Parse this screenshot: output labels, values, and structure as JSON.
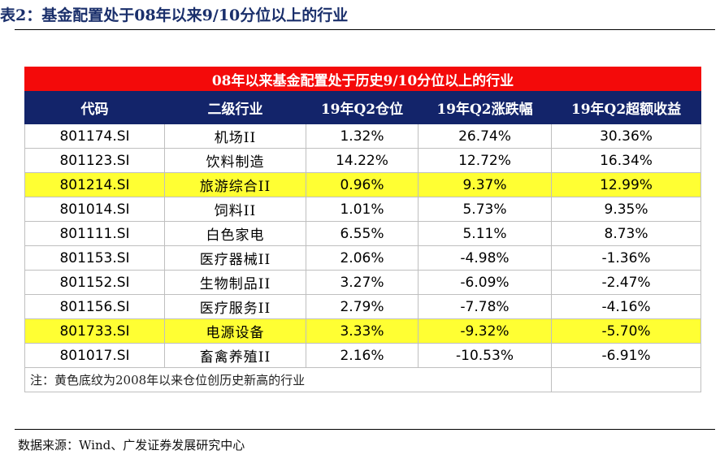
{
  "figure_title": "表2：基金配置处于08年以来9/10分位以上的行业",
  "table": {
    "banner": "08年以来基金配置处于历史9/10分位以上的行业",
    "columns": [
      "代码",
      "二级行业",
      "19年Q2仓位",
      "19年Q2涨跌幅",
      "19年Q2超额收益"
    ],
    "rows": [
      {
        "code": "801174.SI",
        "industry": "机场II",
        "position": "1.32%",
        "change": "26.74%",
        "excess": "30.36%",
        "highlight": false
      },
      {
        "code": "801123.SI",
        "industry": "饮料制造",
        "position": "14.22%",
        "change": "12.72%",
        "excess": "16.34%",
        "highlight": false
      },
      {
        "code": "801214.SI",
        "industry": "旅游综合II",
        "position": "0.96%",
        "change": "9.37%",
        "excess": "12.99%",
        "highlight": true
      },
      {
        "code": "801014.SI",
        "industry": "饲料II",
        "position": "1.01%",
        "change": "5.73%",
        "excess": "9.35%",
        "highlight": false
      },
      {
        "code": "801111.SI",
        "industry": "白色家电",
        "position": "6.55%",
        "change": "5.11%",
        "excess": "8.73%",
        "highlight": false
      },
      {
        "code": "801153.SI",
        "industry": "医疗器械II",
        "position": "2.06%",
        "change": "-4.98%",
        "excess": "-1.36%",
        "highlight": false
      },
      {
        "code": "801152.SI",
        "industry": "生物制品II",
        "position": "3.27%",
        "change": "-6.09%",
        "excess": "-2.47%",
        "highlight": false
      },
      {
        "code": "801156.SI",
        "industry": "医疗服务II",
        "position": "2.79%",
        "change": "-7.78%",
        "excess": "-4.16%",
        "highlight": false
      },
      {
        "code": "801733.SI",
        "industry": "电源设备",
        "position": "3.33%",
        "change": "-9.32%",
        "excess": "-5.70%",
        "highlight": true
      },
      {
        "code": "801017.SI",
        "industry": "畜禽养殖II",
        "position": "2.16%",
        "change": "-10.53%",
        "excess": "-6.91%",
        "highlight": false
      }
    ],
    "note": "注：黄色底纹为2008年以来仓位创历史新高的行业"
  },
  "source": "数据来源：Wind、广发证券发展研究中心",
  "colors": {
    "banner_bg": "#f40a0a",
    "header_bg": "#13246a",
    "highlight_bg": "#ffff33",
    "title_text": "#1a2f6b"
  }
}
